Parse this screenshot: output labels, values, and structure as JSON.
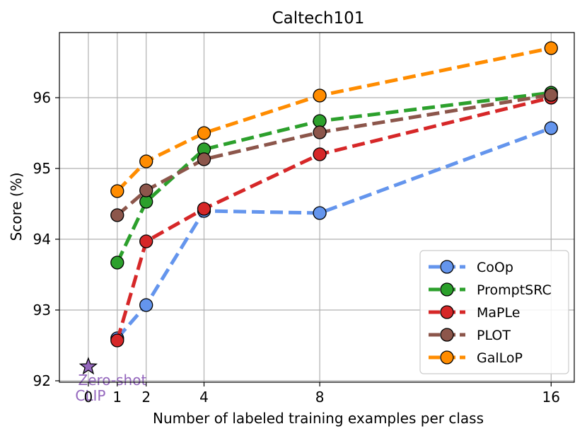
{
  "chart_data": {
    "type": "line",
    "title": "Caltech101",
    "xlabel": "Number of labeled training examples per class",
    "ylabel": "Score (%)",
    "xlim": [
      -1.0,
      16.8
    ],
    "ylim": [
      91.98,
      96.92
    ],
    "xticks": [
      0,
      1,
      2,
      4,
      8,
      16
    ],
    "yticks": [
      92,
      93,
      94,
      95,
      96
    ],
    "grid": true,
    "legend_position": "bottom-right",
    "x": [
      1,
      2,
      4,
      8,
      16
    ],
    "series": [
      {
        "name": "CoOp",
        "color": "#6495ED",
        "values": [
          92.6,
          93.07,
          94.4,
          94.37,
          95.57
        ]
      },
      {
        "name": "PromptSRC",
        "color": "#2CA02C",
        "values": [
          93.67,
          94.53,
          95.27,
          95.67,
          96.07
        ]
      },
      {
        "name": "MaPLe",
        "color": "#D62728",
        "values": [
          92.57,
          93.97,
          94.43,
          95.2,
          96.0
        ]
      },
      {
        "name": "PLOT",
        "color": "#8C564B",
        "values": [
          94.34,
          94.69,
          95.13,
          95.51,
          96.04
        ]
      },
      {
        "name": "GalLoP",
        "color": "#FF8C00",
        "values": [
          94.68,
          95.1,
          95.5,
          96.03,
          96.7
        ]
      }
    ],
    "zero_shot": {
      "label_line1": "Zero-shot",
      "label_line2": "CLIP",
      "x": 0,
      "y": 92.2,
      "color": "#9467BD"
    }
  }
}
